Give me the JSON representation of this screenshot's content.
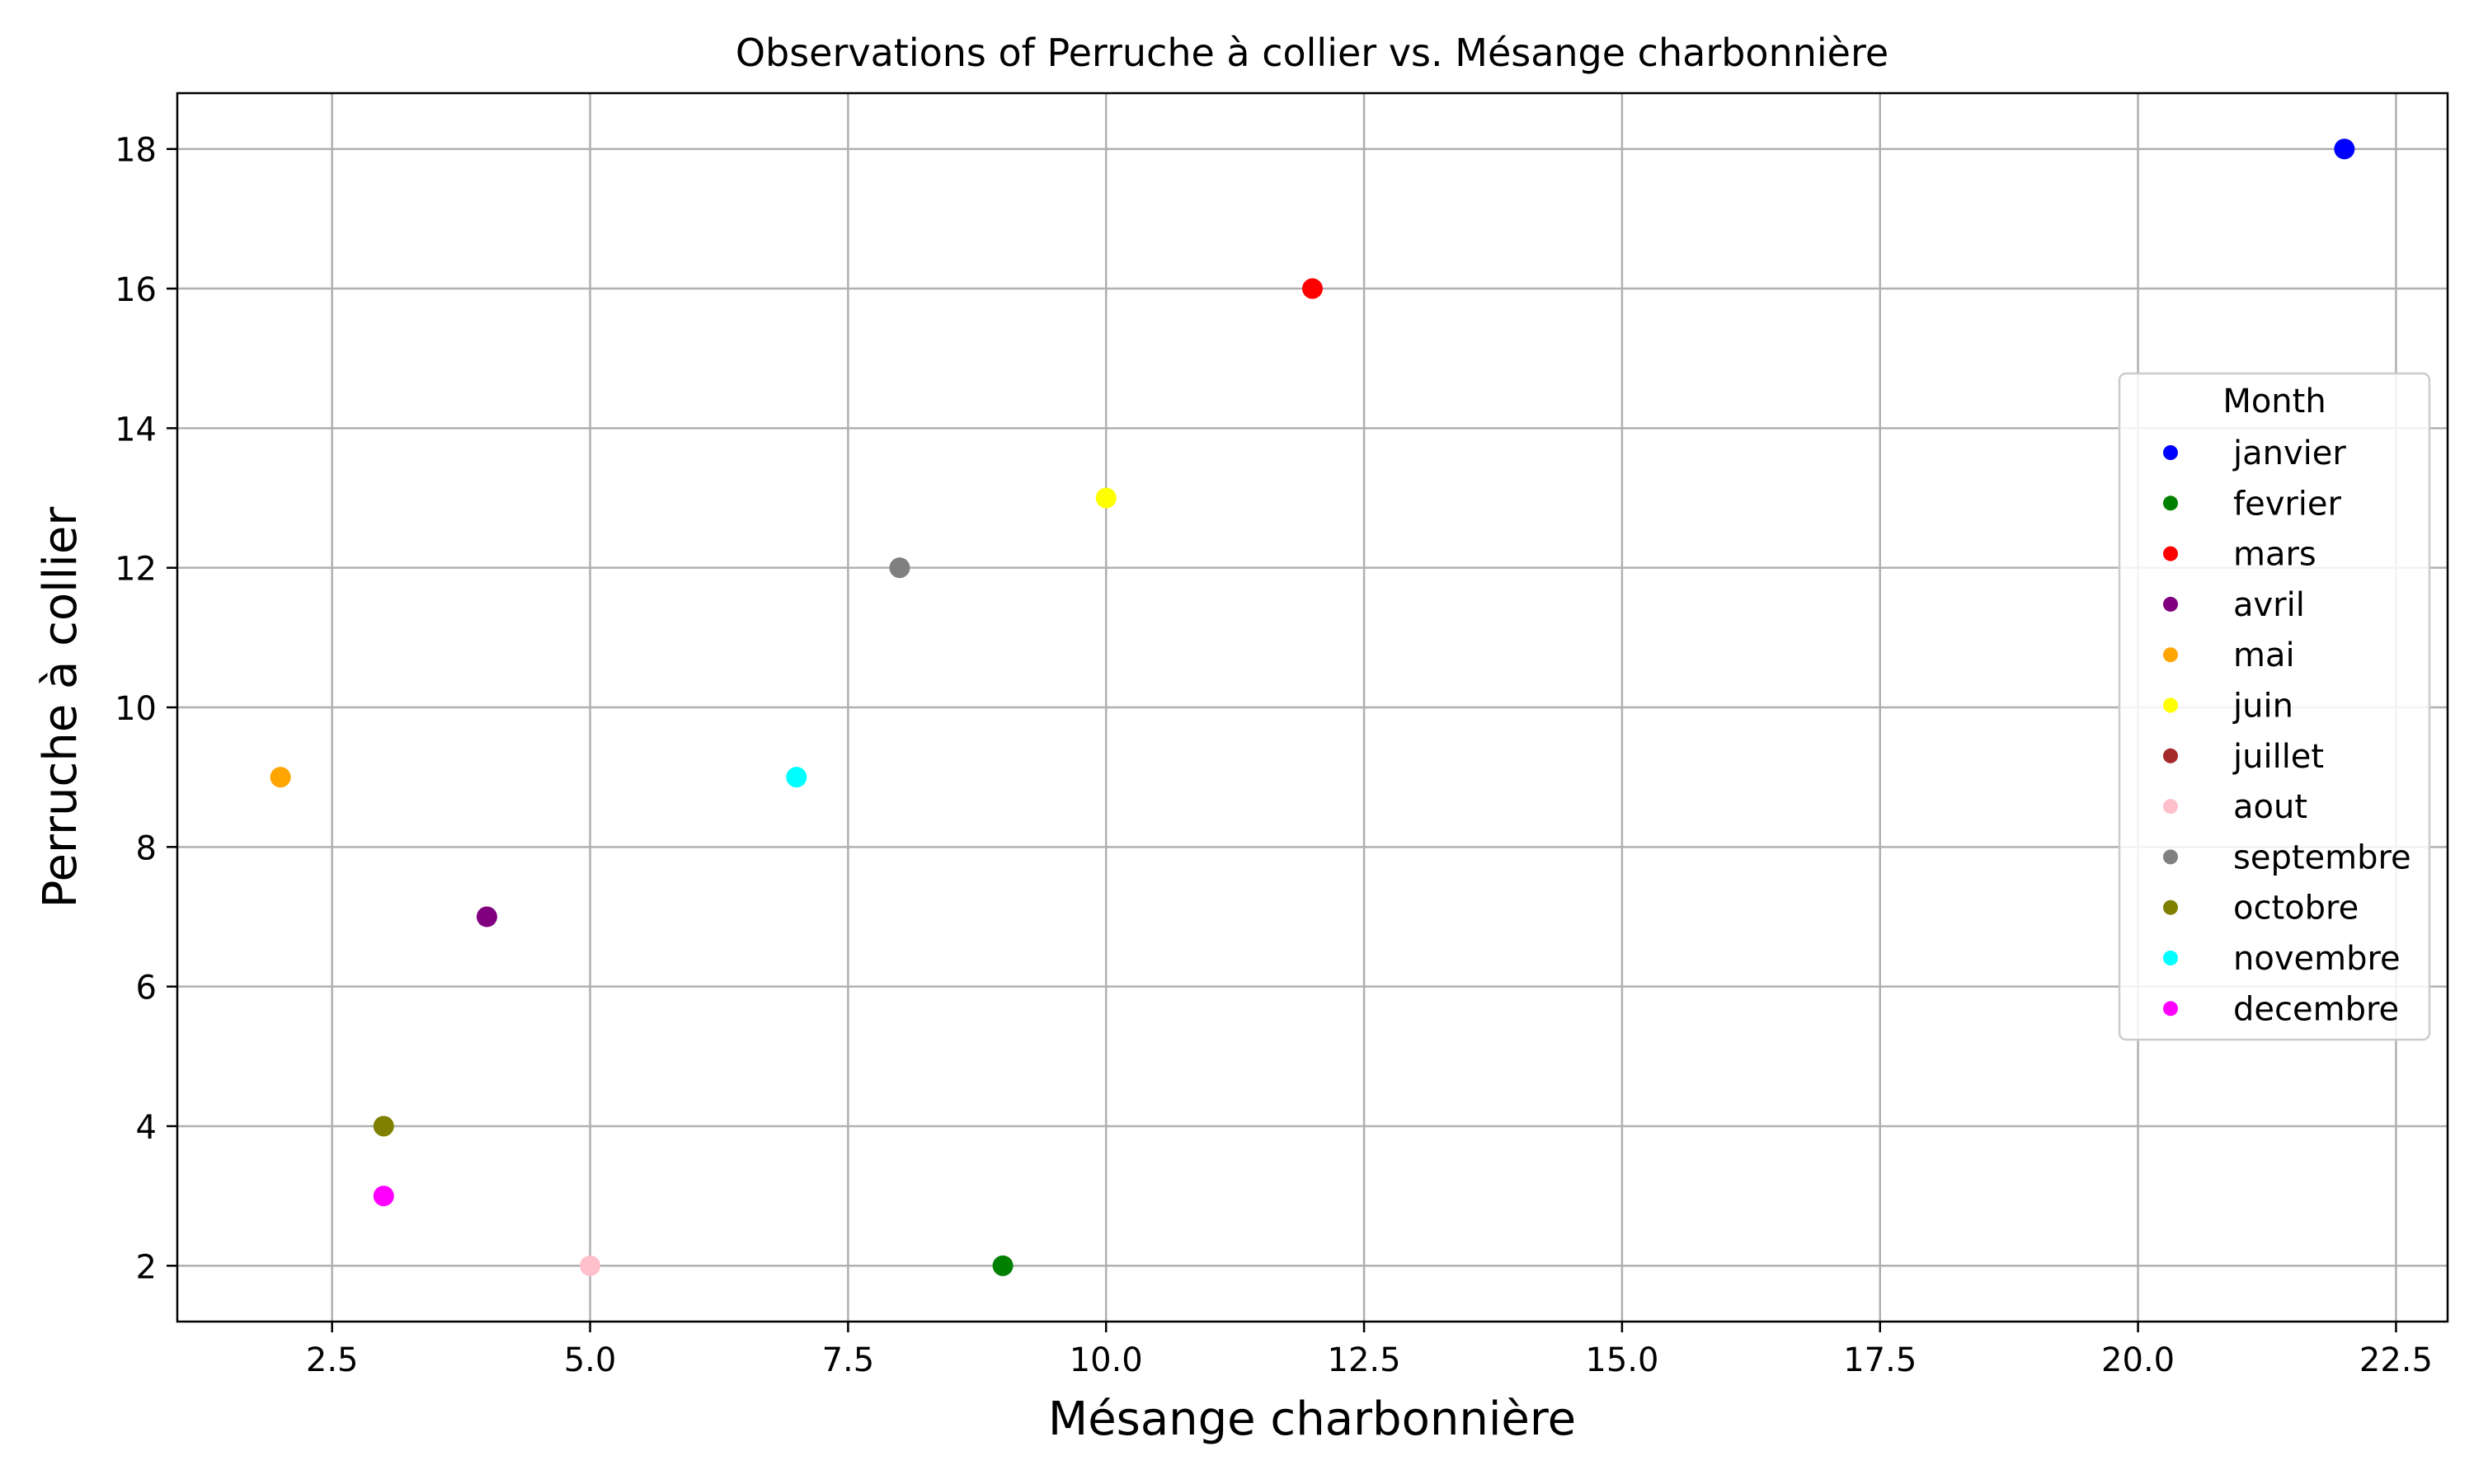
{
  "chart_data": {
    "type": "scatter",
    "title": "Observations of Perruche à collier vs. Mésange charbonnière",
    "xlabel": "Mésange charbonnière",
    "ylabel": "Perruche à collier",
    "xlim": [
      1.0,
      23.0
    ],
    "ylim": [
      1.2,
      18.8
    ],
    "xticks": [
      2.5,
      5.0,
      7.5,
      10.0,
      12.5,
      15.0,
      17.5,
      20.0,
      22.5
    ],
    "xtick_labels": [
      "2.5",
      "5.0",
      "7.5",
      "10.0",
      "12.5",
      "15.0",
      "17.5",
      "20.0",
      "22.5"
    ],
    "yticks": [
      2,
      4,
      6,
      8,
      10,
      12,
      14,
      16,
      18
    ],
    "ytick_labels": [
      "2",
      "4",
      "6",
      "8",
      "10",
      "12",
      "14",
      "16",
      "18"
    ],
    "grid": true,
    "legend": {
      "title": "Month",
      "placement": "center-right"
    },
    "series": [
      {
        "name": "janvier",
        "color": "#0000ff",
        "x": [
          22
        ],
        "y": [
          18
        ]
      },
      {
        "name": "fevrier",
        "color": "#008000",
        "x": [
          9
        ],
        "y": [
          2
        ]
      },
      {
        "name": "mars",
        "color": "#ff0000",
        "x": [
          12
        ],
        "y": [
          16
        ]
      },
      {
        "name": "avril",
        "color": "#800080",
        "x": [
          4
        ],
        "y": [
          7
        ]
      },
      {
        "name": "mai",
        "color": "#ffa500",
        "x": [
          2
        ],
        "y": [
          9
        ]
      },
      {
        "name": "juin",
        "color": "#ffff00",
        "x": [
          10
        ],
        "y": [
          13
        ]
      },
      {
        "name": "juillet",
        "color": "#a52a2a",
        "x": [],
        "y": []
      },
      {
        "name": "aout",
        "color": "#ffc0cb",
        "x": [
          5
        ],
        "y": [
          2
        ]
      },
      {
        "name": "septembre",
        "color": "#808080",
        "x": [
          8
        ],
        "y": [
          12
        ]
      },
      {
        "name": "octobre",
        "color": "#808000",
        "x": [
          3
        ],
        "y": [
          4
        ]
      },
      {
        "name": "novembre",
        "color": "#00ffff",
        "x": [
          7
        ],
        "y": [
          9
        ]
      },
      {
        "name": "decembre",
        "color": "#ff00ff",
        "x": [
          3
        ],
        "y": [
          3
        ]
      }
    ]
  }
}
